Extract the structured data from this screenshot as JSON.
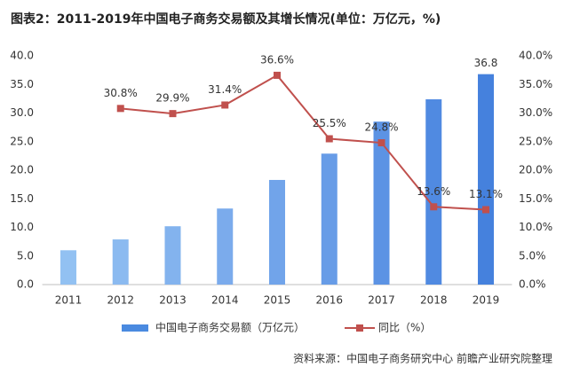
{
  "chart_data": {
    "type": "bar-line",
    "title": "图表2：2011-2019年中国电子商务交易额及其增长情况(单位：万亿元，%)",
    "source": "资料来源：中国电子商务研究中心 前瞻产业研究院整理",
    "categories": [
      "2011",
      "2012",
      "2013",
      "2014",
      "2015",
      "2016",
      "2017",
      "2018",
      "2019"
    ],
    "series": [
      {
        "name": "中国电子商务交易额（万亿元）",
        "type": "bar",
        "color": "#4a8ae0",
        "colors": [
          "#92c1f2",
          "#8bbaf0",
          "#83b3ee",
          "#7babec",
          "#71a4ea",
          "#679ce7",
          "#5c93e4",
          "#508ae1",
          "#4581dd"
        ],
        "values": [
          6.0,
          7.9,
          10.2,
          13.3,
          18.3,
          22.9,
          28.5,
          32.4,
          36.8
        ],
        "value_labels": [
          null,
          null,
          null,
          null,
          null,
          null,
          null,
          null,
          "36.8"
        ]
      },
      {
        "name": "同比（%）",
        "type": "line",
        "axis": "y2",
        "color": "#c0504d",
        "values": [
          null,
          30.8,
          29.9,
          31.4,
          36.6,
          25.5,
          24.8,
          13.6,
          13.1
        ],
        "value_labels": [
          null,
          "30.8%",
          "29.9%",
          "31.4%",
          "36.6%",
          "25.5%",
          "24.8%",
          "13.6%",
          "13.1%"
        ]
      }
    ],
    "ylim": [
      0,
      40
    ],
    "yticks": [
      {
        "value": 0,
        "label": "0.0"
      },
      {
        "value": 5,
        "label": "5.0"
      },
      {
        "value": 10,
        "label": "10.0"
      },
      {
        "value": 15,
        "label": "15.0"
      },
      {
        "value": 20,
        "label": "20.0"
      },
      {
        "value": 25,
        "label": "25.0"
      },
      {
        "value": 30,
        "label": "30.0"
      },
      {
        "value": 35,
        "label": "35.0"
      },
      {
        "value": 40,
        "label": "40.0"
      }
    ],
    "y2lim": [
      0,
      40
    ],
    "y2ticks": [
      {
        "value": 0,
        "label": "0.0%"
      },
      {
        "value": 5,
        "label": "5.0%"
      },
      {
        "value": 10,
        "label": "10.0%"
      },
      {
        "value": 15,
        "label": "15.0%"
      },
      {
        "value": 20,
        "label": "20.0%"
      },
      {
        "value": 25,
        "label": "25.0%"
      },
      {
        "value": 30,
        "label": "30.0%"
      },
      {
        "value": 35,
        "label": "35.0%"
      },
      {
        "value": 40,
        "label": "40.0%"
      }
    ],
    "legend": "bottom"
  }
}
